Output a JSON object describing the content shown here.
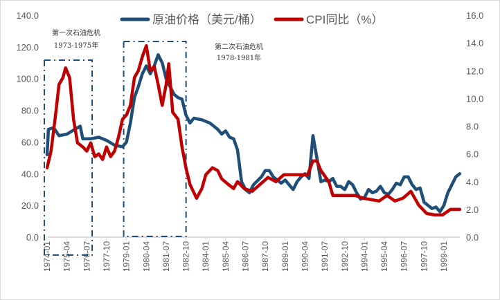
{
  "chart_data": {
    "type": "line",
    "title": "",
    "x_axis": {
      "type": "date",
      "tick_labels": [
        "1974-01",
        "1975-04",
        "1976-07",
        "1977-10",
        "1979-01",
        "1980-04",
        "1981-07",
        "1982-10",
        "1984-01",
        "1985-04",
        "1986-07",
        "1987-10",
        "1989-01",
        "1990-04",
        "1991-07",
        "1992-10",
        "1994-01",
        "1995-04",
        "1996-07",
        "1997-10",
        "1999-01"
      ],
      "range": [
        "1974-01",
        "2000-01"
      ]
    },
    "y_axis_left": {
      "range": [
        0,
        140
      ],
      "tick_labels": [
        "0.0",
        "20.0",
        "40.0",
        "60.0",
        "80.0",
        "100.0",
        "120.0",
        "140.0"
      ]
    },
    "y_axis_right": {
      "range": [
        0,
        16
      ],
      "tick_labels": [
        "0.0",
        "2.0",
        "4.0",
        "6.0",
        "8.0",
        "10.0",
        "12.0",
        "14.0",
        "16.0"
      ]
    },
    "grid": false,
    "legend_position": "top",
    "series": [
      {
        "name": "原油价格（美元/桶）",
        "axis": "left",
        "color": "#1f4e79",
        "points": [
          [
            "1974-01",
            52
          ],
          [
            "1974-02",
            68
          ],
          [
            "1974-06",
            69
          ],
          [
            "1974-10",
            64
          ],
          [
            "1975-04",
            65
          ],
          [
            "1975-10",
            68
          ],
          [
            "1976-02",
            70
          ],
          [
            "1976-04",
            62
          ],
          [
            "1976-10",
            62
          ],
          [
            "1977-04",
            63
          ],
          [
            "1977-10",
            61
          ],
          [
            "1978-04",
            58
          ],
          [
            "1978-10",
            57
          ],
          [
            "1979-01",
            60
          ],
          [
            "1979-04",
            72
          ],
          [
            "1979-07",
            88
          ],
          [
            "1979-10",
            95
          ],
          [
            "1980-01",
            103
          ],
          [
            "1980-04",
            108
          ],
          [
            "1980-07",
            103
          ],
          [
            "1980-10",
            108
          ],
          [
            "1981-01",
            115
          ],
          [
            "1981-04",
            110
          ],
          [
            "1981-07",
            100
          ],
          [
            "1981-10",
            95
          ],
          [
            "1982-01",
            90
          ],
          [
            "1982-04",
            88
          ],
          [
            "1982-07",
            87
          ],
          [
            "1982-10",
            77
          ],
          [
            "1983-01",
            72
          ],
          [
            "1983-04",
            75
          ],
          [
            "1983-10",
            74
          ],
          [
            "1984-04",
            72
          ],
          [
            "1984-10",
            68
          ],
          [
            "1985-01",
            65
          ],
          [
            "1985-04",
            67
          ],
          [
            "1985-07",
            63
          ],
          [
            "1985-10",
            62
          ],
          [
            "1986-01",
            55
          ],
          [
            "1986-04",
            35
          ],
          [
            "1986-07",
            30
          ],
          [
            "1986-10",
            28
          ],
          [
            "1987-01",
            33
          ],
          [
            "1987-07",
            38
          ],
          [
            "1987-10",
            42
          ],
          [
            "1988-01",
            42
          ],
          [
            "1988-04",
            38
          ],
          [
            "1988-10",
            34
          ],
          [
            "1989-01",
            36
          ],
          [
            "1989-07",
            30
          ],
          [
            "1989-10",
            35
          ],
          [
            "1990-01",
            38
          ],
          [
            "1990-04",
            40
          ],
          [
            "1990-07",
            37
          ],
          [
            "1990-10",
            64
          ],
          [
            "1991-01",
            50
          ],
          [
            "1991-04",
            35
          ],
          [
            "1991-07",
            36
          ],
          [
            "1991-10",
            35
          ],
          [
            "1992-01",
            37
          ],
          [
            "1992-04",
            32
          ],
          [
            "1992-07",
            32
          ],
          [
            "1992-10",
            30
          ],
          [
            "1993-01",
            35
          ],
          [
            "1993-04",
            33
          ],
          [
            "1993-07",
            28
          ],
          [
            "1993-10",
            24
          ],
          [
            "1994-01",
            25
          ],
          [
            "1994-04",
            30
          ],
          [
            "1994-07",
            28
          ],
          [
            "1994-10",
            29
          ],
          [
            "1995-01",
            32
          ],
          [
            "1995-04",
            28
          ],
          [
            "1995-07",
            27
          ],
          [
            "1995-10",
            30
          ],
          [
            "1996-01",
            34
          ],
          [
            "1996-04",
            33
          ],
          [
            "1996-07",
            38
          ],
          [
            "1996-10",
            38
          ],
          [
            "1997-01",
            33
          ],
          [
            "1997-04",
            30
          ],
          [
            "1997-07",
            31
          ],
          [
            "1997-10",
            22
          ],
          [
            "1998-01",
            20
          ],
          [
            "1998-04",
            18
          ],
          [
            "1998-07",
            19
          ],
          [
            "1998-10",
            16
          ],
          [
            "1999-01",
            20
          ],
          [
            "1999-04",
            28
          ],
          [
            "1999-07",
            33
          ],
          [
            "1999-10",
            38
          ],
          [
            "2000-01",
            40
          ]
        ]
      },
      {
        "name": "CPI同比（%）",
        "axis": "right",
        "color": "#c00000",
        "points": [
          [
            "1974-01",
            5.0
          ],
          [
            "1974-04",
            6.2
          ],
          [
            "1974-07",
            8.5
          ],
          [
            "1974-10",
            11.0
          ],
          [
            "1975-01",
            11.5
          ],
          [
            "1975-03",
            12.2
          ],
          [
            "1975-06",
            11.5
          ],
          [
            "1975-09",
            8.5
          ],
          [
            "1975-12",
            6.8
          ],
          [
            "1976-04",
            6.5
          ],
          [
            "1976-07",
            6.2
          ],
          [
            "1976-10",
            6.8
          ],
          [
            "1977-01",
            5.8
          ],
          [
            "1977-04",
            6.0
          ],
          [
            "1977-07",
            5.6
          ],
          [
            "1977-10",
            6.5
          ],
          [
            "1978-01",
            5.8
          ],
          [
            "1978-04",
            6.2
          ],
          [
            "1978-07",
            7.2
          ],
          [
            "1978-10",
            8.5
          ],
          [
            "1979-01",
            8.8
          ],
          [
            "1979-04",
            9.5
          ],
          [
            "1979-07",
            11.5
          ],
          [
            "1979-10",
            12.0
          ],
          [
            "1980-01",
            13.0
          ],
          [
            "1980-04",
            13.8
          ],
          [
            "1980-07",
            12.0
          ],
          [
            "1980-10",
            12.3
          ],
          [
            "1981-01",
            11.0
          ],
          [
            "1981-04",
            9.5
          ],
          [
            "1981-07",
            11.0
          ],
          [
            "1981-09",
            12.5
          ],
          [
            "1981-12",
            9.0
          ],
          [
            "1982-04",
            8.5
          ],
          [
            "1982-07",
            6.5
          ],
          [
            "1982-10",
            5.0
          ],
          [
            "1983-01",
            3.8
          ],
          [
            "1983-06",
            2.8
          ],
          [
            "1983-10",
            3.5
          ],
          [
            "1984-01",
            4.5
          ],
          [
            "1984-06",
            5.0
          ],
          [
            "1984-10",
            4.8
          ],
          [
            "1985-01",
            4.2
          ],
          [
            "1985-06",
            3.8
          ],
          [
            "1985-10",
            3.5
          ],
          [
            "1986-01",
            4.0
          ],
          [
            "1986-06",
            3.5
          ],
          [
            "1986-12",
            3.3
          ],
          [
            "1987-06",
            3.8
          ],
          [
            "1987-12",
            4.3
          ],
          [
            "1988-06",
            4.0
          ],
          [
            "1988-12",
            4.5
          ],
          [
            "1989-06",
            4.5
          ],
          [
            "1989-12",
            4.5
          ],
          [
            "1990-06",
            4.5
          ],
          [
            "1990-10",
            5.5
          ],
          [
            "1991-01",
            5.5
          ],
          [
            "1991-04",
            4.8
          ],
          [
            "1991-10",
            4.0
          ],
          [
            "1992-01",
            3.0
          ],
          [
            "1992-06",
            3.0
          ],
          [
            "1992-12",
            3.0
          ],
          [
            "1993-06",
            3.0
          ],
          [
            "1993-12",
            2.8
          ],
          [
            "1994-06",
            2.7
          ],
          [
            "1994-12",
            2.6
          ],
          [
            "1995-06",
            3.0
          ],
          [
            "1995-12",
            2.6
          ],
          [
            "1996-06",
            2.8
          ],
          [
            "1996-12",
            3.3
          ],
          [
            "1997-06",
            2.3
          ],
          [
            "1997-12",
            1.7
          ],
          [
            "1998-06",
            1.6
          ],
          [
            "1998-12",
            1.6
          ],
          [
            "1999-06",
            2.0
          ],
          [
            "2000-01",
            2.0
          ]
        ]
      }
    ],
    "annotations": [
      {
        "title": "第一次石油危机",
        "period": "1973-1975年",
        "box": [
          "1974-01",
          "1976-10"
        ]
      },
      {
        "title": "第二次石油危机",
        "period": "1978-1981年",
        "box": [
          "1979-01",
          "1982-09"
        ]
      }
    ]
  }
}
